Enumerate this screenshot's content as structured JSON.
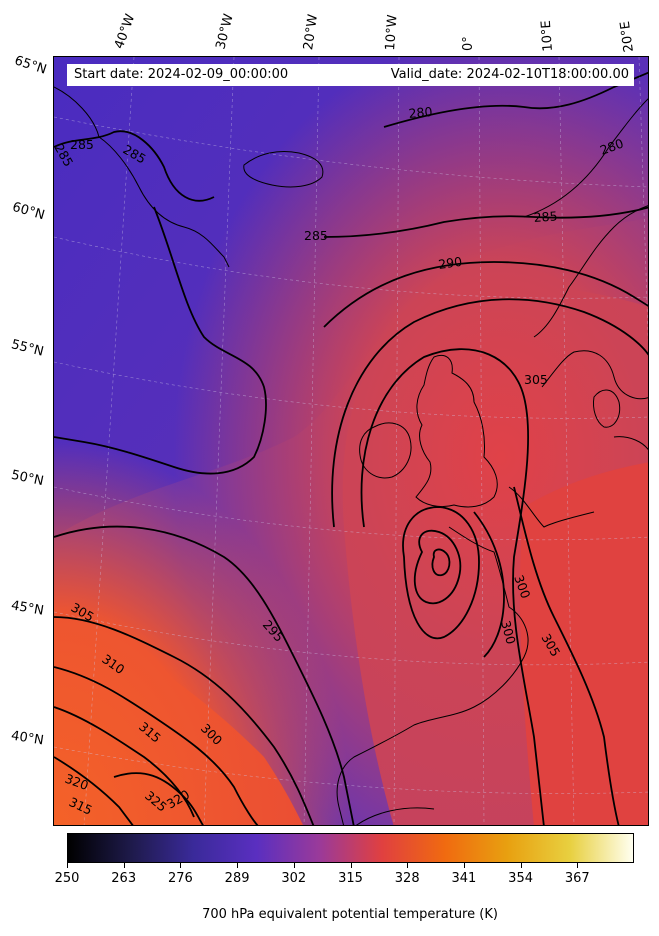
{
  "header": {
    "start_date": "Start date: 2024-02-09_00:00:00",
    "valid_date": "Valid_date: 2024-02-10T18:00:00.00"
  },
  "longitude_labels": [
    "40°W",
    "30°W",
    "20°W",
    "10°W",
    "0°",
    "10°E",
    "20°E"
  ],
  "latitude_labels": [
    "65°N",
    "60°N",
    "55°N",
    "50°N",
    "45°N",
    "40°N"
  ],
  "contour_labels": [
    "280",
    "280",
    "285",
    "285",
    "285",
    "285",
    "285",
    "290",
    "295",
    "300",
    "300",
    "300",
    "305",
    "305",
    "305",
    "310",
    "315",
    "315",
    "320",
    "320",
    "325"
  ],
  "colorbar": {
    "ticks": [
      "250",
      "263",
      "276",
      "289",
      "302",
      "315",
      "328",
      "341",
      "354",
      "367"
    ],
    "title": "700 hPa equivalent potential temperature (K)",
    "colormap": [
      "#000000",
      "#1e1a4a",
      "#3a2a9a",
      "#5a2fc0",
      "#9a3a9a",
      "#e04040",
      "#f06a10",
      "#e8a010",
      "#e8d040",
      "#fffff0"
    ]
  },
  "colors": {
    "cold": "#4a2ec0",
    "mid": "#7a3aa8",
    "warm": "#d84450",
    "hot": "#f05a28"
  }
}
